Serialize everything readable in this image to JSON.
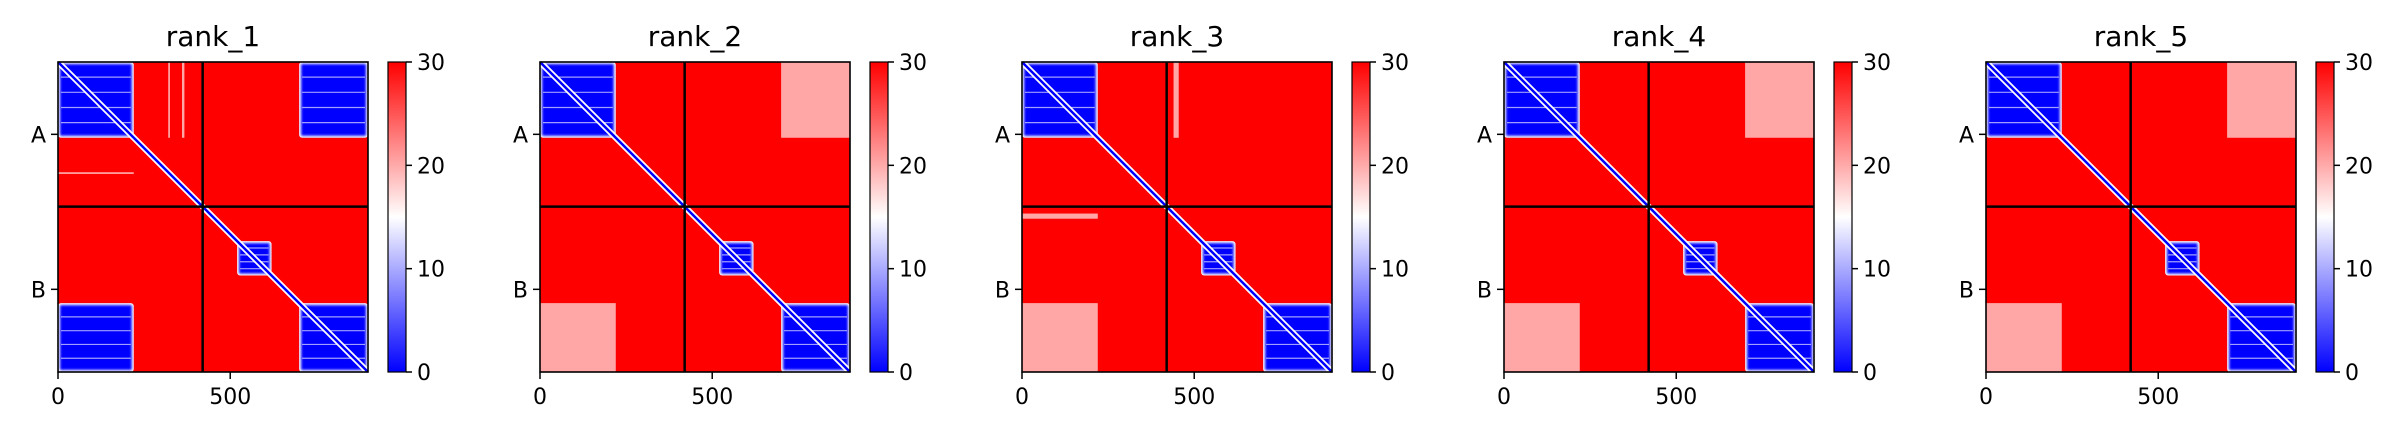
{
  "chart_data": [
    {
      "type": "heatmap",
      "title": "rank_1",
      "xlim": [
        0,
        900
      ],
      "ylim": [
        900,
        0
      ],
      "x_ticks": [
        0,
        500
      ],
      "x_tick_labels": [
        "0",
        "500"
      ],
      "chain_boundary": 420,
      "y_tick_labels": [
        "A",
        "B"
      ],
      "y_tick_positions": [
        210,
        660
      ],
      "colorbar": {
        "min": 0,
        "max": 30,
        "ticks": [
          0,
          10,
          20,
          30
        ],
        "tick_labels": [
          "0",
          "10",
          "20",
          "30"
        ]
      },
      "colormap": [
        "#0000ff",
        "#ffffff",
        "#ff0000"
      ],
      "low_error_blocks": [
        [
          0,
          0,
          220,
          220
        ],
        [
          520,
          520,
          620,
          620
        ],
        [
          700,
          700,
          900,
          900
        ],
        [
          700,
          0,
          900,
          220
        ],
        [
          0,
          700,
          220,
          900
        ]
      ],
      "stripes": [
        [
          320,
          0,
          325,
          220
        ],
        [
          0,
          320,
          220,
          325
        ],
        [
          360,
          0,
          367,
          220
        ]
      ]
    },
    {
      "type": "heatmap",
      "title": "rank_2",
      "xlim": [
        0,
        900
      ],
      "ylim": [
        900,
        0
      ],
      "x_ticks": [
        0,
        500
      ],
      "x_tick_labels": [
        "0",
        "500"
      ],
      "chain_boundary": 420,
      "y_tick_labels": [
        "A",
        "B"
      ],
      "y_tick_positions": [
        210,
        660
      ],
      "colorbar": {
        "min": 0,
        "max": 30,
        "ticks": [
          0,
          10,
          20,
          30
        ],
        "tick_labels": [
          "0",
          "10",
          "20",
          "30"
        ]
      },
      "colormap": [
        "#0000ff",
        "#ffffff",
        "#ff0000"
      ],
      "low_error_blocks": [
        [
          0,
          0,
          220,
          220
        ],
        [
          520,
          520,
          620,
          620
        ],
        [
          700,
          700,
          900,
          900
        ]
      ],
      "stripes": [
        [
          0,
          700,
          220,
          900
        ],
        [
          700,
          0,
          900,
          220
        ]
      ]
    },
    {
      "type": "heatmap",
      "title": "rank_3",
      "xlim": [
        0,
        900
      ],
      "ylim": [
        900,
        0
      ],
      "x_ticks": [
        0,
        500
      ],
      "x_tick_labels": [
        "0",
        "500"
      ],
      "chain_boundary": 420,
      "y_tick_labels": [
        "A",
        "B"
      ],
      "y_tick_positions": [
        210,
        660
      ],
      "colorbar": {
        "min": 0,
        "max": 30,
        "ticks": [
          0,
          10,
          20,
          30
        ],
        "tick_labels": [
          "0",
          "10",
          "20",
          "30"
        ]
      },
      "colormap": [
        "#0000ff",
        "#ffffff",
        "#ff0000"
      ],
      "low_error_blocks": [
        [
          0,
          0,
          220,
          220
        ],
        [
          520,
          520,
          620,
          620
        ],
        [
          700,
          700,
          900,
          900
        ]
      ],
      "stripes": [
        [
          440,
          0,
          455,
          220
        ],
        [
          0,
          440,
          220,
          455
        ],
        [
          0,
          700,
          220,
          900
        ]
      ]
    },
    {
      "type": "heatmap",
      "title": "rank_4",
      "xlim": [
        0,
        900
      ],
      "ylim": [
        900,
        0
      ],
      "x_ticks": [
        0,
        500
      ],
      "x_tick_labels": [
        "0",
        "500"
      ],
      "chain_boundary": 420,
      "y_tick_labels": [
        "A",
        "B"
      ],
      "y_tick_positions": [
        210,
        660
      ],
      "colorbar": {
        "min": 0,
        "max": 30,
        "ticks": [
          0,
          10,
          20,
          30
        ],
        "tick_labels": [
          "0",
          "10",
          "20",
          "30"
        ]
      },
      "colormap": [
        "#0000ff",
        "#ffffff",
        "#ff0000"
      ],
      "low_error_blocks": [
        [
          0,
          0,
          220,
          220
        ],
        [
          520,
          520,
          620,
          620
        ],
        [
          700,
          700,
          900,
          900
        ]
      ],
      "stripes": [
        [
          0,
          700,
          220,
          900
        ],
        [
          700,
          0,
          900,
          220
        ]
      ]
    },
    {
      "type": "heatmap",
      "title": "rank_5",
      "xlim": [
        0,
        900
      ],
      "ylim": [
        900,
        0
      ],
      "x_ticks": [
        0,
        500
      ],
      "x_tick_labels": [
        "0",
        "500"
      ],
      "chain_boundary": 420,
      "y_tick_labels": [
        "A",
        "B"
      ],
      "y_tick_positions": [
        210,
        660
      ],
      "colorbar": {
        "min": 0,
        "max": 30,
        "ticks": [
          0,
          10,
          20,
          30
        ],
        "tick_labels": [
          "0",
          "10",
          "20",
          "30"
        ]
      },
      "colormap": [
        "#0000ff",
        "#ffffff",
        "#ff0000"
      ],
      "low_error_blocks": [
        [
          0,
          0,
          220,
          220
        ],
        [
          520,
          520,
          620,
          620
        ],
        [
          700,
          700,
          900,
          900
        ]
      ],
      "stripes": [
        [
          0,
          700,
          220,
          900
        ],
        [
          700,
          0,
          900,
          220
        ]
      ]
    }
  ]
}
